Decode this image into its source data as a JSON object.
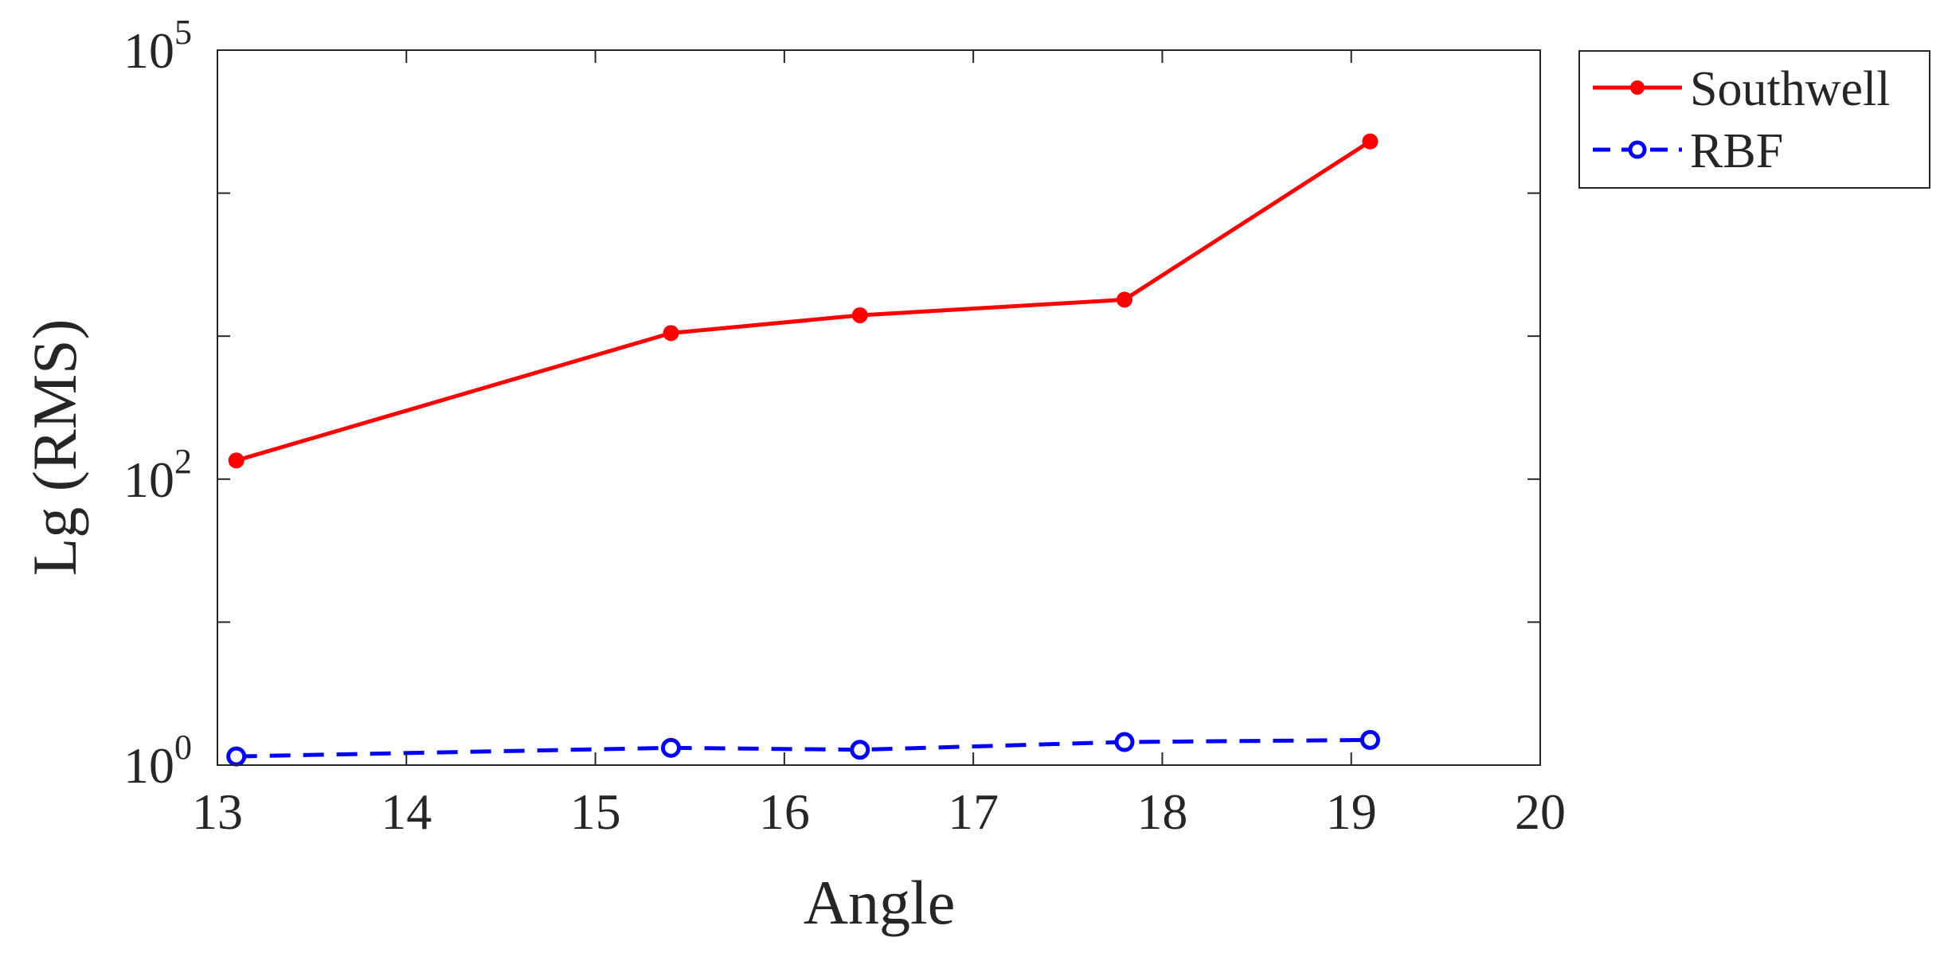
{
  "chart_data": {
    "type": "line",
    "xlabel": "Angle",
    "ylabel": "Lg (RMS)",
    "xlim": [
      13,
      20
    ],
    "ylim": [
      1,
      100000
    ],
    "yscale": "log",
    "grid": false,
    "legend_position": "outside-top-right",
    "x_ticks": [
      "13",
      "14",
      "15",
      "16",
      "17",
      "18",
      "19",
      "20"
    ],
    "y_ticks": [
      {
        "base": "10",
        "exp": "0"
      },
      {
        "base": "10",
        "exp": "2"
      },
      {
        "base": "10",
        "exp": "5"
      }
    ],
    "series": [
      {
        "name": "Southwell",
        "color": "#ff0000",
        "line_style": "solid",
        "marker": "filled-circle",
        "x": [
          13.1,
          15.4,
          16.4,
          17.8,
          19.1
        ],
        "y": [
          135,
          1050,
          1400,
          1800,
          23000
        ]
      },
      {
        "name": "RBF",
        "color": "#0000ff",
        "line_style": "dashed",
        "marker": "open-circle",
        "x": [
          13.1,
          15.4,
          16.4,
          17.8,
          19.1
        ],
        "y": [
          1.15,
          1.32,
          1.28,
          1.45,
          1.5
        ]
      }
    ]
  }
}
